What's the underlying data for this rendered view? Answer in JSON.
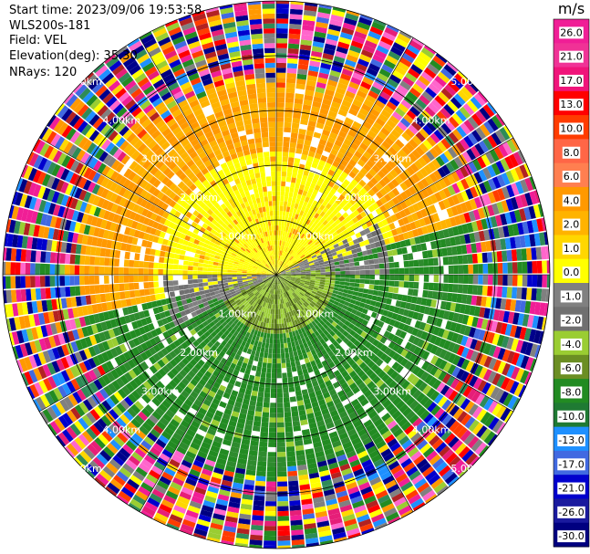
{
  "info": {
    "start_time": "Start time: 2023/09/06 19:53:58",
    "site": "WLS200s-181",
    "field": "Field: VEL",
    "elevation": "Elevation(deg): 35.30",
    "nrays": "NRays: 120"
  },
  "colorbar": {
    "unit": "m/s",
    "ticks": [
      "26.0",
      "21.0",
      "17.0",
      "13.0",
      "10.0",
      "8.0",
      "6.0",
      "4.0",
      "2.0",
      "1.0",
      "0.0",
      "-1.0",
      "-2.0",
      "-4.0",
      "-6.0",
      "-8.0",
      "-10.0",
      "-13.0",
      "-17.0",
      "-21.0",
      "-26.0",
      "-30.0"
    ],
    "colors": [
      "#f01e96",
      "#f03296",
      "#f0147a",
      "#ff0000",
      "#ff3c00",
      "#ff6646",
      "#ff7f50",
      "#ff9900",
      "#ffb300",
      "#ffd700",
      "#ffff00",
      "#808080",
      "#707070",
      "#9acd32",
      "#6b8e23",
      "#228b22",
      "#1f7a33",
      "#1e90ff",
      "#4169e1",
      "#0000cd",
      "#1a1a9e",
      "#000080"
    ]
  },
  "chart_data": {
    "type": "ppi_polar",
    "field": "VEL",
    "units": "m/s",
    "range_rings_km": [
      1.0,
      2.0,
      3.0,
      4.0,
      5.0
    ],
    "ring_labels": [
      "1.00km",
      "2.00km",
      "3.00km",
      "4.00km",
      "5.00km"
    ],
    "nrays": 120,
    "elevation_deg": 35.3,
    "max_range_km": 5.0,
    "velocity_pattern": "positive (toward yellow/orange, 1-6 m/s) in northern half, negative (green, -2 to -8 m/s) in southern half, near-zero (grey) along WSW-ENE band; noisy multicolor beyond ~3.5 km"
  }
}
